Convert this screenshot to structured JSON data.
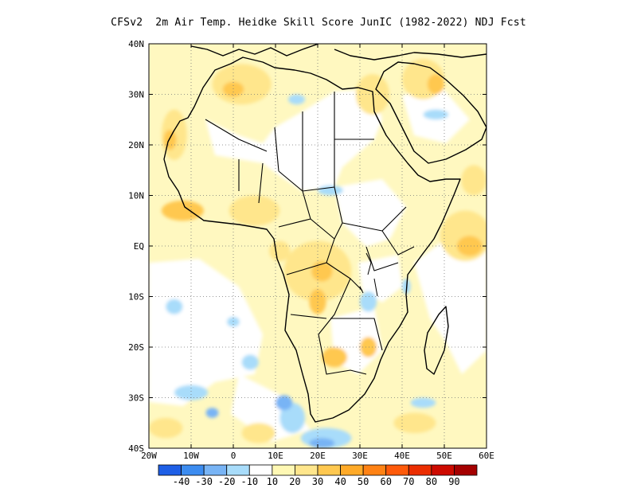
{
  "title": "CFSv2  2m Air Temp. Heidke Skill Score JunIC (1982-2022) NDJ Fcst",
  "map": {
    "lon_range": [
      -20,
      60
    ],
    "lat_range": [
      -40,
      40
    ],
    "x_ticks": [
      {
        "lon": -20,
        "label": "20W"
      },
      {
        "lon": -10,
        "label": "10W"
      },
      {
        "lon": 0,
        "label": "0"
      },
      {
        "lon": 10,
        "label": "10E"
      },
      {
        "lon": 20,
        "label": "20E"
      },
      {
        "lon": 30,
        "label": "30E"
      },
      {
        "lon": 40,
        "label": "40E"
      },
      {
        "lon": 50,
        "label": "50E"
      },
      {
        "lon": 60,
        "label": "60E"
      }
    ],
    "y_ticks": [
      {
        "lat": 40,
        "label": "40N"
      },
      {
        "lat": 30,
        "label": "30N"
      },
      {
        "lat": 20,
        "label": "20N"
      },
      {
        "lat": 10,
        "label": "10N"
      },
      {
        "lat": 0,
        "label": "EQ"
      },
      {
        "lat": -10,
        "label": "10S"
      },
      {
        "lat": -20,
        "label": "20S"
      },
      {
        "lat": -30,
        "label": "30S"
      },
      {
        "lat": -40,
        "label": "40S"
      }
    ],
    "grid": true
  },
  "colorbar": {
    "colors": [
      "#1e5fe6",
      "#3c8cf0",
      "#78b4f5",
      "#a8dcfa",
      "#ffffff",
      "#fff8b4",
      "#ffe68c",
      "#ffc850",
      "#ffaa28",
      "#ff8214",
      "#ff5a0a",
      "#eb2d00",
      "#cd0a00",
      "#a50000"
    ],
    "labels": [
      "-40",
      "-30",
      "-20",
      "-10",
      "10",
      "20",
      "30",
      "40",
      "50",
      "60",
      "70",
      "80",
      "90"
    ]
  },
  "shading": [
    {
      "level": "20",
      "color": "#ffe68c",
      "lon": 2,
      "lat": 32,
      "rlon": 7,
      "rlat": 4
    },
    {
      "level": "30",
      "color": "#ffc850",
      "lon": 0,
      "lat": 31,
      "rlon": 2.5,
      "rlat": 1.5
    },
    {
      "level": "20",
      "color": "#ffe68c",
      "lon": -14,
      "lat": 22,
      "rlon": 3,
      "rlat": 5
    },
    {
      "level": "30",
      "color": "#ffc850",
      "lon": -15,
      "lat": 21,
      "rlon": 1.5,
      "rlat": 2
    },
    {
      "level": "30",
      "color": "#ffc850",
      "lon": -12,
      "lat": 7,
      "rlon": 5,
      "rlat": 2
    },
    {
      "level": "20",
      "color": "#ffe68c",
      "lon": 5,
      "lat": 7,
      "rlon": 6,
      "rlat": 3
    },
    {
      "level": "20",
      "color": "#ffe68c",
      "lon": 20,
      "lat": -5,
      "rlon": 8,
      "rlat": 6
    },
    {
      "level": "30",
      "color": "#ffc850",
      "lon": 21,
      "lat": -5,
      "rlon": 2.5,
      "rlat": 2
    },
    {
      "level": "30",
      "color": "#ffc850",
      "lon": 20,
      "lat": -11,
      "rlon": 2,
      "rlat": 2.5
    },
    {
      "level": "20",
      "color": "#ffe68c",
      "lon": 11,
      "lat": -1,
      "rlon": 2.5,
      "rlat": 2
    },
    {
      "level": "30",
      "color": "#ffc850",
      "lon": 24,
      "lat": -22,
      "rlon": 3,
      "rlat": 2
    },
    {
      "level": "30",
      "color": "#ffc850",
      "lon": 32,
      "lat": -20,
      "rlon": 2,
      "rlat": 2
    },
    {
      "level": "20",
      "color": "#ffe68c",
      "lon": 55,
      "lat": 2,
      "rlon": 6,
      "rlat": 5
    },
    {
      "level": "30",
      "color": "#ffc850",
      "lon": 56,
      "lat": 0,
      "rlon": 3,
      "rlat": 2
    },
    {
      "level": "20",
      "color": "#ffe68c",
      "lon": 57,
      "lat": 13,
      "rlon": 3,
      "rlat": 3
    },
    {
      "level": "20",
      "color": "#ffe68c",
      "lon": 33,
      "lat": 30,
      "rlon": 4,
      "rlat": 4
    },
    {
      "level": "20",
      "color": "#ffe68c",
      "lon": 45,
      "lat": 33,
      "rlon": 5,
      "rlat": 4
    },
    {
      "level": "30",
      "color": "#ffc850",
      "lon": 48,
      "lat": 32,
      "rlon": 2,
      "rlat": 2
    },
    {
      "level": "20",
      "color": "#ffe68c",
      "lon": -16,
      "lat": -36,
      "rlon": 4,
      "rlat": 2
    },
    {
      "level": "20",
      "color": "#ffe68c",
      "lon": 6,
      "lat": -37,
      "rlon": 4,
      "rlat": 2
    },
    {
      "level": "20",
      "color": "#ffe68c",
      "lon": 43,
      "lat": -35,
      "rlon": 5,
      "rlat": 2
    },
    {
      "level": "-10",
      "color": "#a8dcfa",
      "lon": 14,
      "lat": -34,
      "rlon": 3,
      "rlat": 3
    },
    {
      "level": "-20",
      "color": "#78b4f5",
      "lon": 12,
      "lat": -31,
      "rlon": 2,
      "rlat": 1.5
    },
    {
      "level": "-10",
      "color": "#a8dcfa",
      "lon": 22,
      "lat": -38,
      "rlon": 6,
      "rlat": 2
    },
    {
      "level": "-20",
      "color": "#78b4f5",
      "lon": 21,
      "lat": -39,
      "rlon": 3,
      "rlat": 1
    },
    {
      "level": "-10",
      "color": "#a8dcfa",
      "lon": -14,
      "lat": -12,
      "rlon": 2,
      "rlat": 1.5
    },
    {
      "level": "-10",
      "color": "#a8dcfa",
      "lon": 0,
      "lat": -15,
      "rlon": 1.5,
      "rlat": 1
    },
    {
      "level": "-10",
      "color": "#a8dcfa",
      "lon": -10,
      "lat": -29,
      "rlon": 4,
      "rlat": 1.5
    },
    {
      "level": "-10",
      "color": "#a8dcfa",
      "lon": 23,
      "lat": 11,
      "rlon": 3,
      "rlat": 1
    },
    {
      "level": "-10",
      "color": "#a8dcfa",
      "lon": 32,
      "lat": -11,
      "rlon": 2,
      "rlat": 2
    },
    {
      "level": "-10",
      "color": "#a8dcfa",
      "lon": 15,
      "lat": 29,
      "rlon": 2,
      "rlat": 1
    },
    {
      "level": "-10",
      "color": "#a8dcfa",
      "lon": 41,
      "lat": -8,
      "rlon": 1,
      "rlat": 1.5
    },
    {
      "level": "-10",
      "color": "#a8dcfa",
      "lon": 45,
      "lat": -31,
      "rlon": 3,
      "rlat": 1
    },
    {
      "level": "-20",
      "color": "#78b4f5",
      "lon": -5,
      "lat": -33,
      "rlon": 1.5,
      "rlat": 1
    },
    {
      "level": "-10",
      "color": "#a8dcfa",
      "lon": 4,
      "lat": -23,
      "rlon": 2,
      "rlat": 1.5
    },
    {
      "level": "-10",
      "color": "#a8dcfa",
      "lon": 48,
      "lat": 26,
      "rlon": 3,
      "rlat": 1
    }
  ]
}
